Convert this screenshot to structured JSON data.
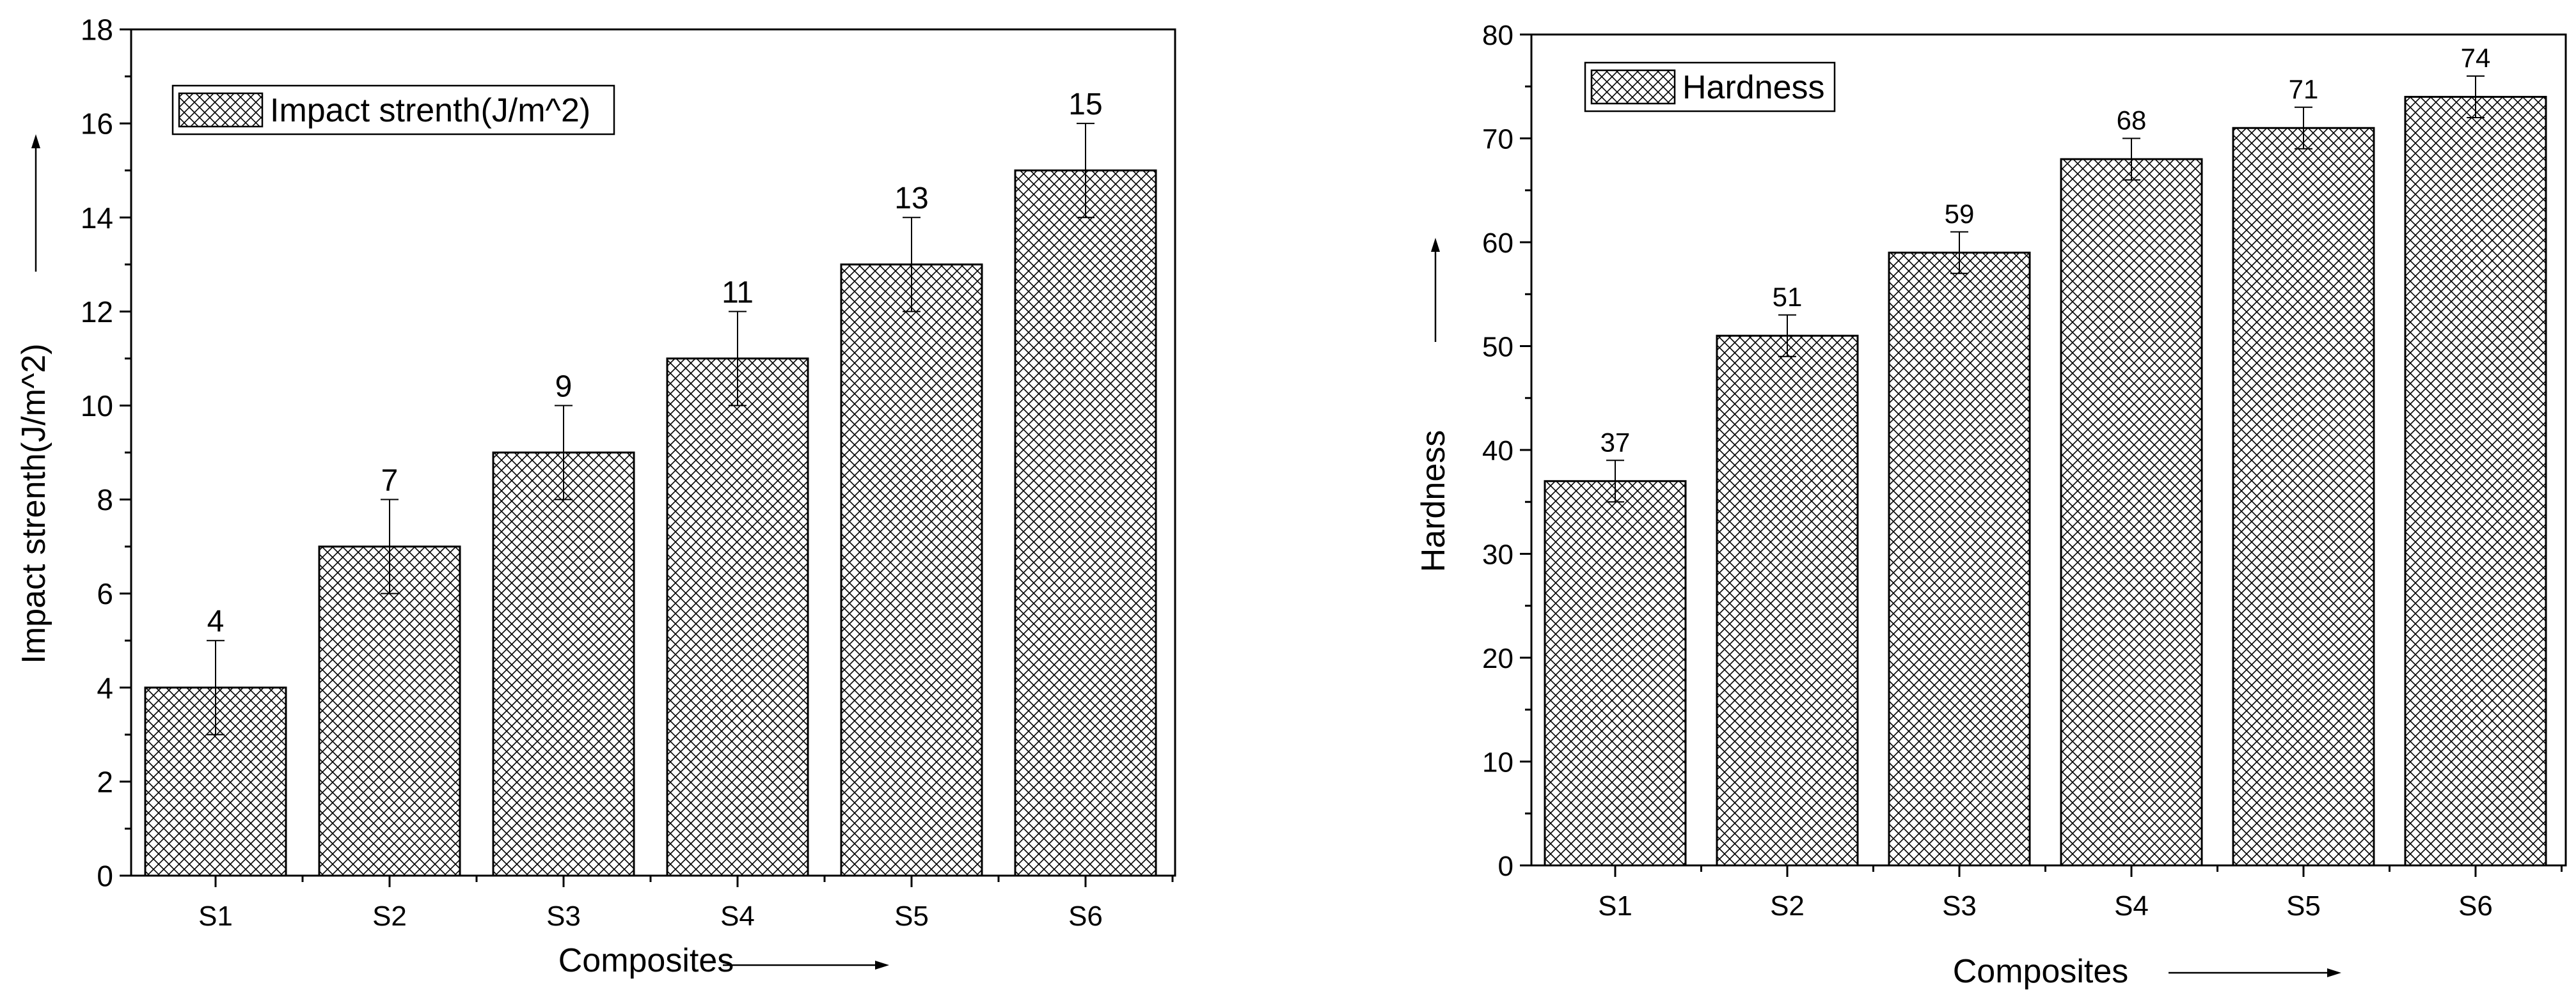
{
  "chart_data": [
    {
      "type": "bar",
      "categories": [
        "S1",
        "S2",
        "S3",
        "S4",
        "S5",
        "S6"
      ],
      "series": [
        {
          "name": "Impact strenth(J/m^2)",
          "values": [
            4,
            7,
            9,
            11,
            13,
            15
          ],
          "error": [
            1,
            1,
            1,
            1,
            1,
            1
          ]
        }
      ],
      "data_labels": [
        "4",
        "7",
        "9",
        "11",
        "13",
        "15"
      ],
      "xlabel": "Composites",
      "ylabel": "Impact strenth(J/m^2)",
      "ylim": [
        0,
        18
      ],
      "yticks": [
        0,
        2,
        4,
        6,
        8,
        10,
        12,
        14,
        16,
        18
      ],
      "ytick_labels": [
        "0",
        "2",
        "4",
        "6",
        "8",
        "10",
        "12",
        "14",
        "16",
        "18"
      ],
      "legend": "top-left",
      "pattern": "crosshatch",
      "grid": false
    },
    {
      "type": "bar",
      "categories": [
        "S1",
        "S2",
        "S3",
        "S4",
        "S5",
        "S6"
      ],
      "series": [
        {
          "name": "Hardness",
          "values": [
            37,
            51,
            59,
            68,
            71,
            74
          ],
          "error": [
            2,
            2,
            2,
            2,
            2,
            2
          ]
        }
      ],
      "data_labels": [
        "37",
        "51",
        "59",
        "68",
        "71",
        "74"
      ],
      "xlabel": "Composites",
      "ylabel": "Hardness",
      "ylim": [
        0,
        80
      ],
      "yticks": [
        0,
        10,
        20,
        30,
        40,
        50,
        60,
        70,
        80
      ],
      "ytick_labels": [
        "0",
        "10",
        "20",
        "30",
        "40",
        "50",
        "60",
        "70",
        "80"
      ],
      "legend": "top-left",
      "pattern": "crosshatch",
      "grid": false
    }
  ]
}
